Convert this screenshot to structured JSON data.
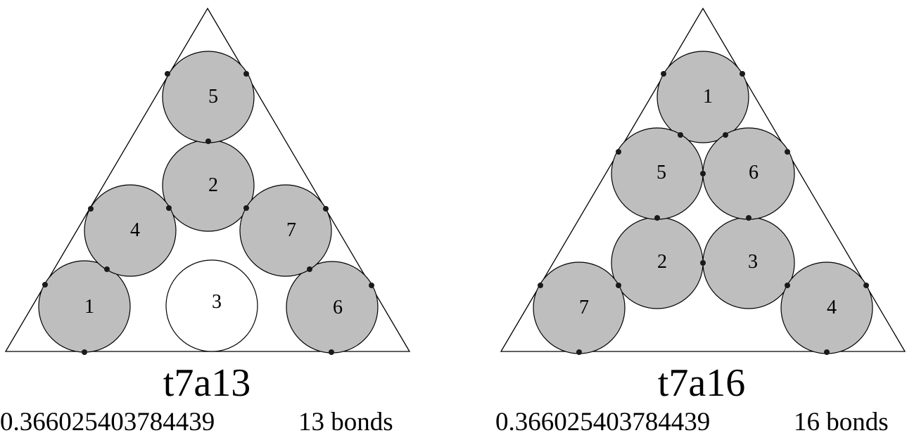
{
  "colors": {
    "filled": "#bebebe",
    "empty": "#ffffff",
    "stroke": "#000000",
    "bond_dot": "#1a1a1a"
  },
  "panels": [
    {
      "name": "t7a13",
      "value": "0.366025403784439",
      "bonds_label": "13 bonds",
      "circles": [
        {
          "label": "1",
          "filled": true
        },
        {
          "label": "2",
          "filled": true
        },
        {
          "label": "3",
          "filled": false
        },
        {
          "label": "4",
          "filled": true
        },
        {
          "label": "5",
          "filled": true
        },
        {
          "label": "6",
          "filled": true
        },
        {
          "label": "7",
          "filled": true
        }
      ]
    },
    {
      "name": "t7a16",
      "value": "0.366025403784439",
      "bonds_label": "16 bonds",
      "circles": [
        {
          "label": "1",
          "filled": true
        },
        {
          "label": "2",
          "filled": true
        },
        {
          "label": "3",
          "filled": true
        },
        {
          "label": "4",
          "filled": true
        },
        {
          "label": "5",
          "filled": true
        },
        {
          "label": "6",
          "filled": true
        },
        {
          "label": "7",
          "filled": true
        }
      ]
    }
  ]
}
